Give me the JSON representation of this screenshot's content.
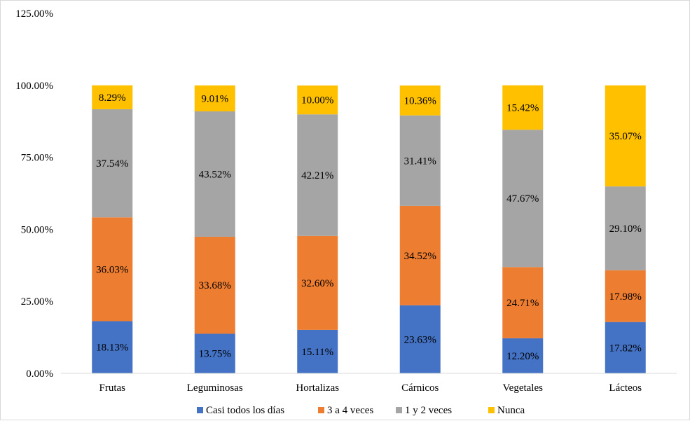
{
  "chart_data": {
    "type": "bar",
    "stacked": true,
    "categories": [
      "Frutas",
      "Leguminosas",
      "Hortalizas",
      "Cárnicos",
      "Vegetales",
      "Lácteos"
    ],
    "series": [
      {
        "name": "Casi todos los días",
        "color": "#4472C4",
        "values": [
          18.13,
          13.75,
          15.11,
          23.63,
          12.2,
          17.82
        ],
        "labels": [
          "18.13%",
          "13.75%",
          "15.11%",
          "23.63%",
          "12.20%",
          "17.82%"
        ]
      },
      {
        "name": "3 a 4 veces",
        "color": "#ED7D31",
        "values": [
          36.03,
          33.68,
          32.6,
          34.52,
          24.71,
          17.98
        ],
        "labels": [
          "36.03%",
          "33.68%",
          "32.60%",
          "34.52%",
          "24.71%",
          "17.98%"
        ]
      },
      {
        "name": "1 y 2 veces",
        "color": "#A5A5A5",
        "values": [
          37.54,
          43.52,
          42.21,
          31.41,
          47.67,
          29.1
        ],
        "labels": [
          "37.54%",
          "43.52%",
          "42.21%",
          "31.41%",
          "47.67%",
          "29.10%"
        ]
      },
      {
        "name": "Nunca",
        "color": "#FFC000",
        "values": [
          8.29,
          9.01,
          10.0,
          10.36,
          15.42,
          35.07
        ],
        "labels": [
          "8.29%",
          "9.01%",
          "10.00%",
          "10.36%",
          "15.42%",
          "35.07%"
        ]
      }
    ],
    "ylim": [
      0,
      125
    ],
    "yticks": [
      0,
      25,
      50,
      75,
      100,
      125
    ],
    "ytick_labels": [
      "0.00%",
      "25.00%",
      "50.00%",
      "75.00%",
      "100.00%",
      "125.00%"
    ],
    "grid": false,
    "legend_position": "bottom",
    "title": "",
    "xlabel": "",
    "ylabel": ""
  }
}
